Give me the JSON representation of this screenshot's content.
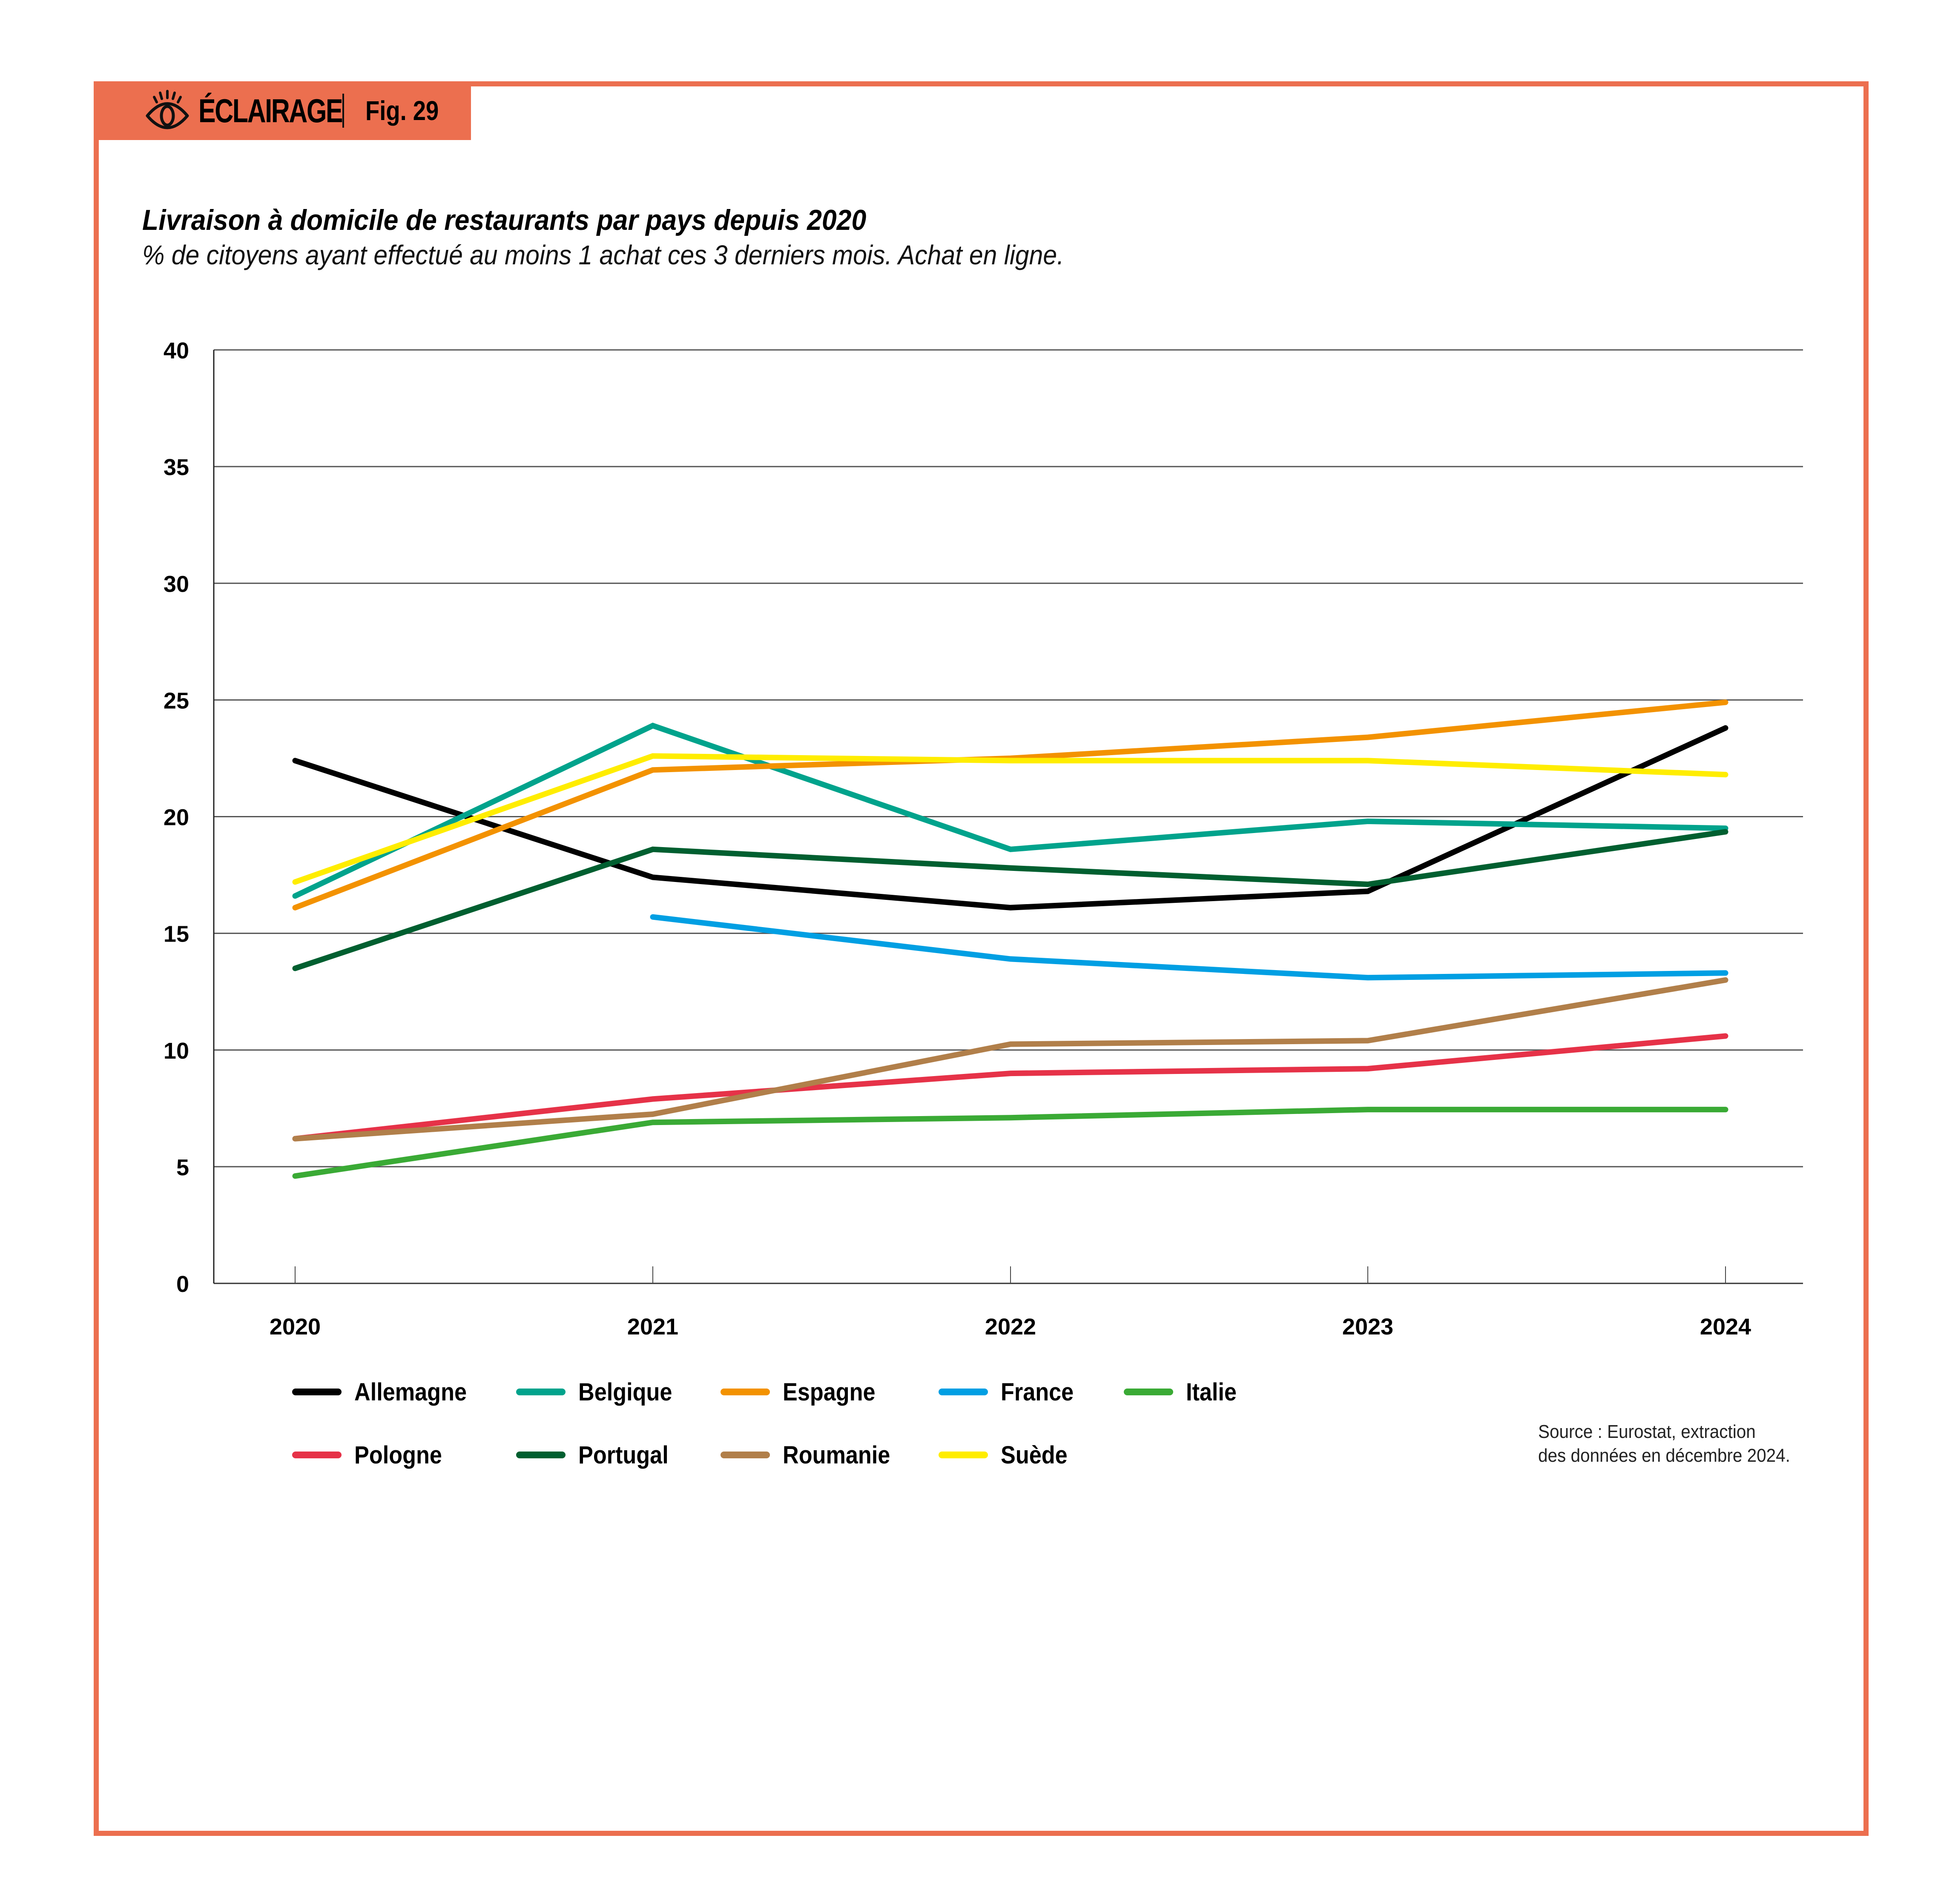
{
  "header": {
    "brand_label": "ÉCLAIRAGE",
    "brand_icon": "eye-icon",
    "figure_label": "Fig. 29",
    "accent_color": "#ec6f4f"
  },
  "source": {
    "line1": "Source : Eurostat, extraction",
    "line2": "des données en décembre 2024."
  },
  "chart_data": {
    "type": "line",
    "title": "Livraison à domicile de restaurants par pays depuis 2020",
    "subtitle": "% de citoyens ayant effectué au moins 1 achat ces 3 derniers mois. Achat en ligne.",
    "xlabel": "",
    "ylabel": "",
    "x": [
      "2020",
      "2021",
      "2022",
      "2023",
      "2024"
    ],
    "ylim": [
      0,
      40
    ],
    "yticks": [
      "0",
      "5",
      "10",
      "15",
      "20",
      "25",
      "30",
      "35",
      "40"
    ],
    "grid": true,
    "legend_position": "bottom",
    "series": [
      {
        "name": "Allemagne",
        "color": "#000000",
        "values": [
          22.4,
          17.4,
          16.1,
          16.8,
          23.8
        ]
      },
      {
        "name": "Belgique",
        "color": "#00a38c",
        "values": [
          16.6,
          23.9,
          18.6,
          19.8,
          19.5
        ]
      },
      {
        "name": "Espagne",
        "color": "#f39200",
        "values": [
          16.1,
          22.0,
          22.5,
          23.4,
          24.9
        ]
      },
      {
        "name": "France",
        "color": "#009fe3",
        "values": [
          null,
          15.7,
          13.9,
          13.1,
          13.3
        ]
      },
      {
        "name": "Italie",
        "color": "#3aaa35",
        "values": [
          4.6,
          6.9,
          7.1,
          7.45,
          7.45
        ]
      },
      {
        "name": "Pologne",
        "color": "#e63248",
        "values": [
          6.2,
          7.9,
          9.0,
          9.2,
          10.6
        ]
      },
      {
        "name": "Portugal",
        "color": "#005f30",
        "values": [
          13.5,
          18.6,
          17.8,
          17.1,
          19.35
        ]
      },
      {
        "name": "Roumanie",
        "color": "#b17f4a",
        "values": [
          6.2,
          7.25,
          10.25,
          10.4,
          13.0
        ]
      },
      {
        "name": "Suède",
        "color": "#ffed00",
        "values": [
          17.2,
          22.6,
          22.4,
          22.4,
          21.8
        ]
      }
    ]
  }
}
